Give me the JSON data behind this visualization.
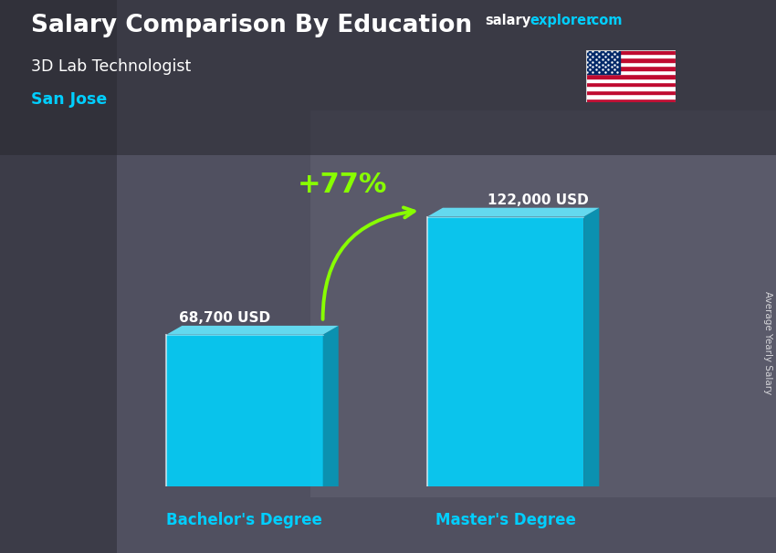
{
  "title_main": "Salary Comparison By Education",
  "title_sub": "3D Lab Technologist",
  "title_city": "San Jose",
  "categories": [
    "Bachelor's Degree",
    "Master's Degree"
  ],
  "values": [
    68700,
    122000
  ],
  "value_labels": [
    "68,700 USD",
    "122,000 USD"
  ],
  "pct_change": "+77%",
  "bar_color_face": "#00D4FF",
  "bar_color_top": "#66E8FF",
  "bar_color_side": "#0099BB",
  "text_color_white": "#FFFFFF",
  "text_color_cyan": "#00CFFF",
  "text_color_green": "#88FF00",
  "watermark_salary": "salary",
  "watermark_explorer": "explorer",
  "watermark_dot_com": ".com",
  "side_label": "Average Yearly Salary",
  "ylim_max": 145000,
  "fig_width": 8.5,
  "fig_height": 6.06,
  "bg_color": "#4a4a5a"
}
